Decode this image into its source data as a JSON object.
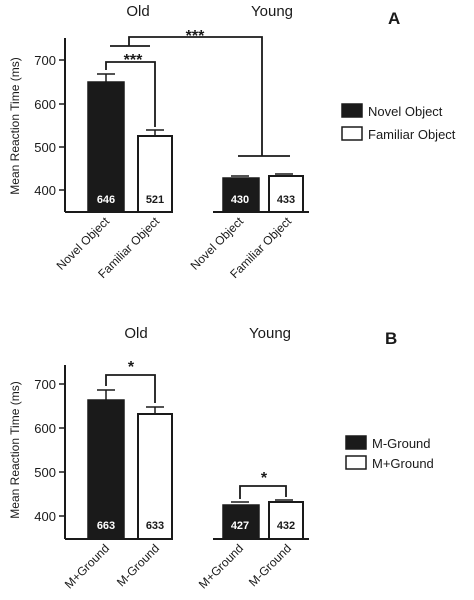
{
  "chart_data": [
    {
      "type": "bar",
      "panel_label": "A",
      "group_labels": [
        "Old",
        "Young"
      ],
      "tick_labels": [
        "Novel Object",
        "Familiar Object",
        "Novel Object",
        "Familiar Object"
      ],
      "ylabel": "Mean Reaction Time (ms)",
      "ylim": [
        370,
        720
      ],
      "yticks": [
        "400",
        "500",
        "600",
        "700"
      ],
      "legend": [
        "Novel Object",
        "Familiar Object"
      ],
      "legend_position": "right",
      "bars": [
        {
          "group": "Old",
          "condition": "Novel Object",
          "value": 646,
          "error": 12,
          "label": "646",
          "fill": "#1a1a1a"
        },
        {
          "group": "Old",
          "condition": "Familiar Object",
          "value": 521,
          "error": 14,
          "label": "521",
          "fill": "#ffffff"
        },
        {
          "group": "Young",
          "condition": "Novel Object",
          "value": 430,
          "error": 5,
          "label": "430",
          "fill": "#1a1a1a"
        },
        {
          "group": "Young",
          "condition": "Familiar Object",
          "value": 433,
          "error": 7,
          "label": "433",
          "fill": "#ffffff"
        }
      ],
      "annotations": [
        {
          "text": "***",
          "between": "Old Novel Object vs Old Familiar Object"
        },
        {
          "text": "***",
          "between": "Old vs Young"
        }
      ]
    },
    {
      "type": "bar",
      "panel_label": "B",
      "group_labels": [
        "Old",
        "Young"
      ],
      "tick_labels": [
        "M+Ground",
        "M-Ground",
        "M+Ground",
        "M-Ground"
      ],
      "ylabel": "Mean Reaction Time (ms)",
      "ylim": [
        370,
        720
      ],
      "yticks": [
        "400",
        "500",
        "600",
        "700"
      ],
      "legend": [
        "M-Ground",
        "M+Ground"
      ],
      "legend_position": "right",
      "bars": [
        {
          "group": "Old",
          "condition": "M-Ground",
          "value": 663,
          "error": 22,
          "label": "663",
          "fill": "#1a1a1a"
        },
        {
          "group": "Old",
          "condition": "M+Ground",
          "value": 633,
          "error": 14,
          "label": "633",
          "fill": "#ffffff"
        },
        {
          "group": "Young",
          "condition": "M-Ground",
          "value": 427,
          "error": 8,
          "label": "427",
          "fill": "#1a1a1a"
        },
        {
          "group": "Young",
          "condition": "M+Ground",
          "value": 432,
          "error": 7,
          "label": "432",
          "fill": "#ffffff"
        }
      ],
      "annotations": [
        {
          "text": "*",
          "between": "Old M-Ground vs Old M+Ground"
        },
        {
          "text": "*",
          "between": "Young M-Ground vs Young M+Ground"
        }
      ]
    }
  ],
  "colors": {
    "ink": "#1a1a1a",
    "background": "#ffffff"
  }
}
